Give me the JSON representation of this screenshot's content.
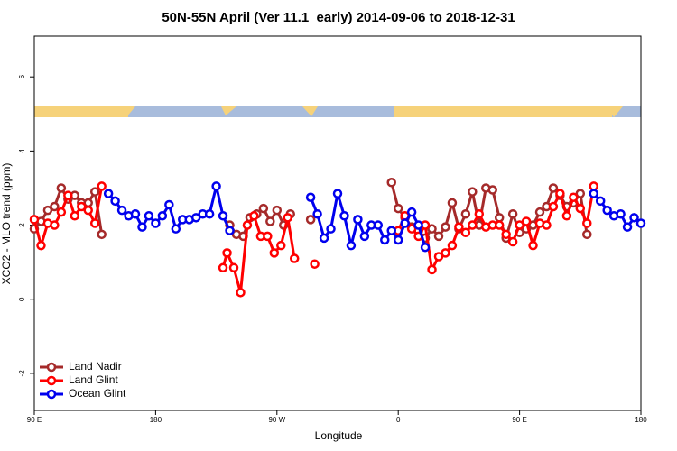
{
  "chart_data": {
    "type": "line",
    "title": "50N-55N April (Ver 11.1_early)   2014-09-06 to 2018-12-31",
    "x_label": "Longitude",
    "y_label": "XCO2 - MLO trend (ppm)",
    "xlim": [
      90,
      540
    ],
    "xticks": [
      {
        "value": 90,
        "label": "90 E"
      },
      {
        "value": 180,
        "label": "180"
      },
      {
        "value": 270,
        "label": "90 W"
      },
      {
        "value": 360,
        "label": "0"
      },
      {
        "value": 450,
        "label": "90 E"
      },
      {
        "value": 540,
        "label": "180"
      }
    ],
    "ylim": [
      -3,
      7.1
    ],
    "yticks": [
      -2,
      0,
      2,
      4,
      6
    ],
    "legend": "bottom-left",
    "series": [
      {
        "name": "Land Nadir",
        "color": "#a52a2a",
        "x": [
          90,
          95,
          100,
          105,
          110,
          115,
          120,
          125,
          130,
          135,
          140,
          145,
          235,
          240,
          245,
          250,
          255,
          260,
          265,
          270,
          275,
          280,
          285,
          295,
          300,
          355,
          360,
          365,
          370,
          375,
          380,
          385,
          390,
          395,
          400,
          405,
          410,
          415,
          420,
          425,
          430,
          435,
          440,
          445,
          450,
          455,
          460,
          465,
          470,
          475,
          480,
          485,
          490,
          495,
          500
        ],
        "values": [
          1.9,
          2.1,
          2.4,
          2.5,
          3.0,
          2.7,
          2.8,
          2.6,
          2.6,
          2.9,
          1.75,
          null,
          2.0,
          1.75,
          1.7,
          2.2,
          2.3,
          2.45,
          2.1,
          2.4,
          2.0,
          2.3,
          null,
          2.15,
          null,
          3.15,
          2.45,
          2.2,
          1.95,
          1.85,
          1.65,
          1.9,
          1.7,
          1.95,
          2.6,
          1.9,
          2.3,
          2.9,
          2.0,
          3.0,
          2.95,
          2.2,
          1.65,
          2.3,
          1.8,
          1.9,
          2.0,
          2.35,
          2.5,
          3.0,
          2.8,
          2.5,
          2.6,
          2.85,
          1.75
        ]
      },
      {
        "name": "Land Glint",
        "color": "#ff0000",
        "x": [
          90,
          95,
          100,
          105,
          110,
          115,
          120,
          125,
          130,
          135,
          140,
          145,
          230,
          233,
          238,
          243,
          248,
          253,
          258,
          263,
          268,
          273,
          278,
          283,
          288,
          298,
          303,
          360,
          365,
          370,
          375,
          380,
          385,
          390,
          395,
          400,
          405,
          410,
          415,
          420,
          425,
          430,
          435,
          440,
          445,
          450,
          455,
          460,
          465,
          470,
          475,
          480,
          485,
          490,
          495,
          500,
          505
        ],
        "values": [
          2.15,
          1.45,
          2.05,
          2.0,
          2.35,
          2.8,
          2.25,
          2.5,
          2.4,
          2.05,
          3.05,
          null,
          0.85,
          1.25,
          0.85,
          0.18,
          2.0,
          2.25,
          1.7,
          1.7,
          1.25,
          1.45,
          2.2,
          1.1,
          null,
          0.95,
          null,
          1.85,
          2.25,
          1.9,
          1.7,
          2.0,
          0.8,
          1.15,
          1.25,
          1.45,
          1.95,
          1.8,
          2.0,
          2.3,
          1.95,
          2.0,
          2.0,
          1.75,
          1.55,
          2.0,
          2.1,
          1.45,
          2.05,
          2.0,
          2.5,
          2.85,
          2.25,
          2.75,
          2.45,
          2.05,
          3.05
        ]
      },
      {
        "name": "Ocean Glint",
        "color": "#0000ee",
        "x": [
          145,
          150,
          155,
          160,
          165,
          170,
          175,
          180,
          185,
          190,
          195,
          200,
          205,
          210,
          215,
          220,
          225,
          230,
          235,
          240,
          295,
          300,
          305,
          310,
          315,
          320,
          325,
          330,
          335,
          340,
          345,
          350,
          355,
          360,
          365,
          370,
          375,
          380,
          385,
          505,
          510,
          515,
          520,
          525,
          530,
          535,
          540
        ],
        "values": [
          2.85,
          2.65,
          2.4,
          2.25,
          2.3,
          1.95,
          2.25,
          2.05,
          2.25,
          2.55,
          1.9,
          2.15,
          2.15,
          2.2,
          2.3,
          2.3,
          3.05,
          2.25,
          1.85,
          null,
          2.75,
          2.3,
          1.65,
          1.9,
          2.85,
          2.25,
          1.45,
          2.15,
          1.7,
          2.0,
          2.0,
          1.6,
          1.85,
          1.6,
          2.05,
          2.35,
          2.0,
          1.4,
          null,
          2.85,
          2.65,
          2.4,
          2.25,
          2.3,
          1.95,
          2.2,
          2.05
        ]
      }
    ]
  }
}
